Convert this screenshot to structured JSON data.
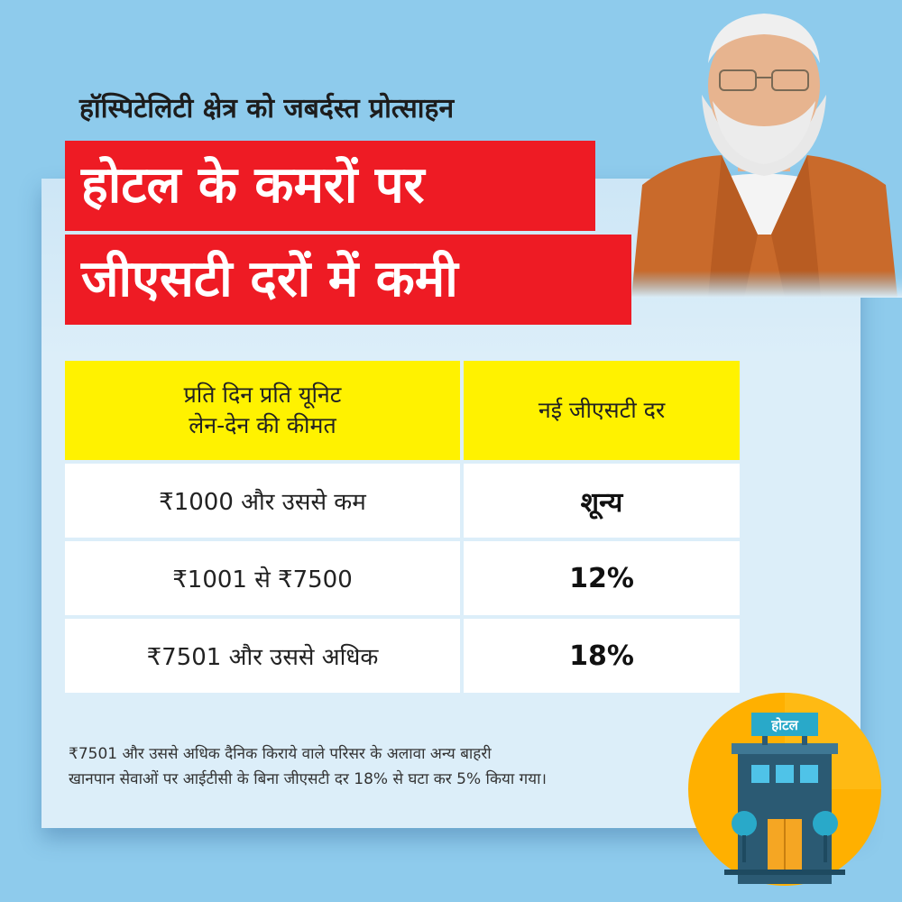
{
  "subtitle": "हॉस्पिटेलिटी क्षेत्र को जबर्दस्त प्रोत्साहन",
  "headline": {
    "line1": "होटल के कमरों पर",
    "line2": "जीएसटी दरों में कमी"
  },
  "table": {
    "header": {
      "price_line1": "प्रति दिन प्रति यूनिट",
      "price_line2": "लेन-देन की कीमत",
      "rate": "नई जीएसटी दर"
    },
    "rows": [
      {
        "price": "₹1000 और उससे कम",
        "rate": "शून्य"
      },
      {
        "price": "₹1001 से ₹7500",
        "rate": "12%"
      },
      {
        "price": "₹7501 और उससे अधिक",
        "rate": "18%"
      }
    ]
  },
  "footnote": {
    "line1": "₹7501 और उससे अधिक दैनिक किराये वाले परिसर के अलावा अन्य बाहरी",
    "line2": "खानपान सेवाओं पर आईटीसी के बिना जीएसटी दर 18% से घटा कर 5% किया गया।"
  },
  "hotel_icon": {
    "sign_label": "होटल",
    "colors": {
      "circle": "#ffb000",
      "building": "#2b5a73",
      "sign": "#29a9c9",
      "door": "#f5a623"
    }
  },
  "colors": {
    "background": "#8ecbec",
    "card": "#dceef9",
    "banner": "#ee1b24",
    "table_header": "#fff200"
  }
}
